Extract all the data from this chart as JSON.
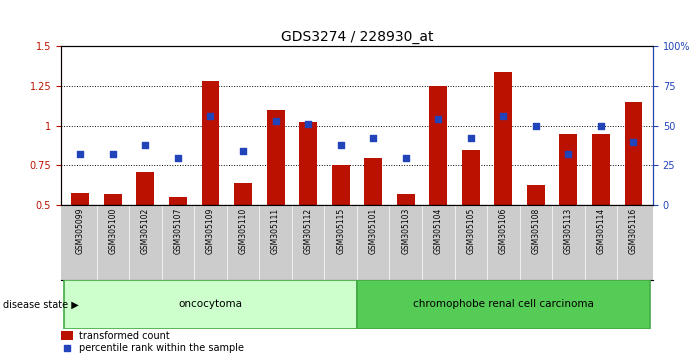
{
  "title": "GDS3274 / 228930_at",
  "samples": [
    "GSM305099",
    "GSM305100",
    "GSM305102",
    "GSM305107",
    "GSM305109",
    "GSM305110",
    "GSM305111",
    "GSM305112",
    "GSM305115",
    "GSM305101",
    "GSM305103",
    "GSM305104",
    "GSM305105",
    "GSM305106",
    "GSM305108",
    "GSM305113",
    "GSM305114",
    "GSM305116"
  ],
  "bar_heights": [
    0.58,
    0.57,
    0.71,
    0.55,
    1.28,
    0.64,
    1.1,
    1.02,
    0.75,
    0.8,
    0.57,
    1.25,
    0.85,
    1.34,
    0.63,
    0.95,
    0.95,
    1.15
  ],
  "blue_dots_left": [
    0.82,
    0.82,
    0.88,
    0.8,
    1.06,
    0.84,
    1.03,
    1.01,
    0.88,
    0.92,
    0.8,
    1.04,
    0.92,
    1.06,
    1.0,
    0.82,
    1.0,
    0.9
  ],
  "ylim_left": [
    0.5,
    1.5
  ],
  "ylim_right": [
    0,
    100
  ],
  "yticks_left": [
    0.5,
    0.75,
    1.0,
    1.25,
    1.5
  ],
  "ytick_labels_left": [
    "0.5",
    "0.75",
    "1",
    "1.25",
    "1.5"
  ],
  "yticks_right": [
    0,
    25,
    50,
    75,
    100
  ],
  "ytick_labels_right": [
    "0",
    "25",
    "50",
    "75",
    "100%"
  ],
  "group1_label": "oncocytoma",
  "group2_label": "chromophobe renal cell carcinoma",
  "group1_count": 9,
  "group2_count": 9,
  "bar_color": "#bb1100",
  "dot_color": "#2244bb",
  "legend_bar_label": "transformed count",
  "legend_dot_label": "percentile rank within the sample",
  "disease_state_label": "disease state",
  "group_box_color1": "#ccffcc",
  "group_box_color2": "#55cc55",
  "xtick_bg_color": "#cccccc",
  "title_fontsize": 10,
  "tick_label_fontsize": 7,
  "background_color": "#ffffff"
}
